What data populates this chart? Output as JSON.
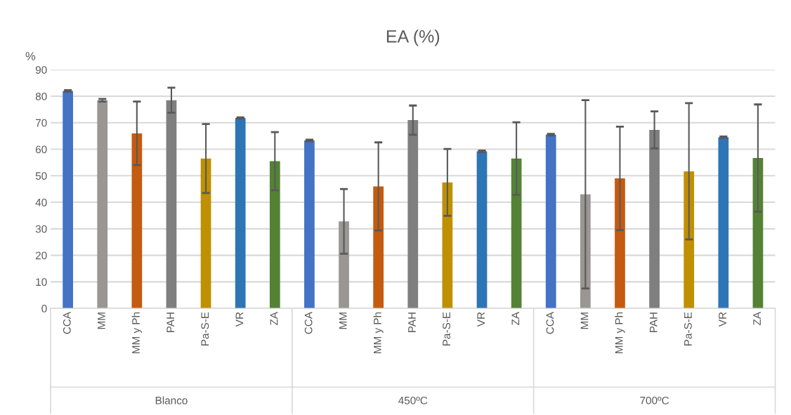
{
  "chart_data": {
    "type": "bar",
    "title": "EA (%)",
    "ylabel": "%",
    "categories": [
      "CCA",
      "MM",
      "MM y Ph",
      "PAH",
      "Pa-S-E",
      "VR",
      "ZA",
      "CCA",
      "MM",
      "MM y Ph",
      "PAH",
      "Pa-S-E",
      "VR",
      "ZA",
      "CCA",
      "MM",
      "MM y Ph",
      "PAH",
      "Pa-S-E",
      "VR",
      "ZA"
    ],
    "values": [
      82,
      78.5,
      66,
      78.5,
      56.5,
      71.8,
      55.5,
      63.3,
      32.8,
      46,
      71,
      47.5,
      59.2,
      56.5,
      65.5,
      43,
      49,
      67.3,
      51.7,
      64.5,
      56.7
    ],
    "errors": [
      0.3,
      0.5,
      12,
      4.7,
      13,
      0.2,
      11,
      0.3,
      12.2,
      16.6,
      5.5,
      12.6,
      0.3,
      13.7,
      0.3,
      35.5,
      19.5,
      7,
      25.7,
      0.3,
      20.2
    ],
    "colors": [
      "#4472c4",
      "#9a9694",
      "#c55a11",
      "#7f7f7f",
      "#bf9000",
      "#2e75b6",
      "#548235",
      "#4472c4",
      "#9a9694",
      "#c55a11",
      "#7f7f7f",
      "#bf9000",
      "#2e75b6",
      "#548235",
      "#4472c4",
      "#9a9694",
      "#c55a11",
      "#7f7f7f",
      "#bf9000",
      "#2e75b6",
      "#548235"
    ],
    "annotations": [
      "Blanco",
      "450ºC",
      "700ºC"
    ],
    "ylim": [
      0,
      90
    ],
    "yticks": [
      0,
      10,
      20,
      30,
      40,
      50,
      60,
      70,
      80,
      90
    ],
    "grid": "y",
    "legend": false
  }
}
